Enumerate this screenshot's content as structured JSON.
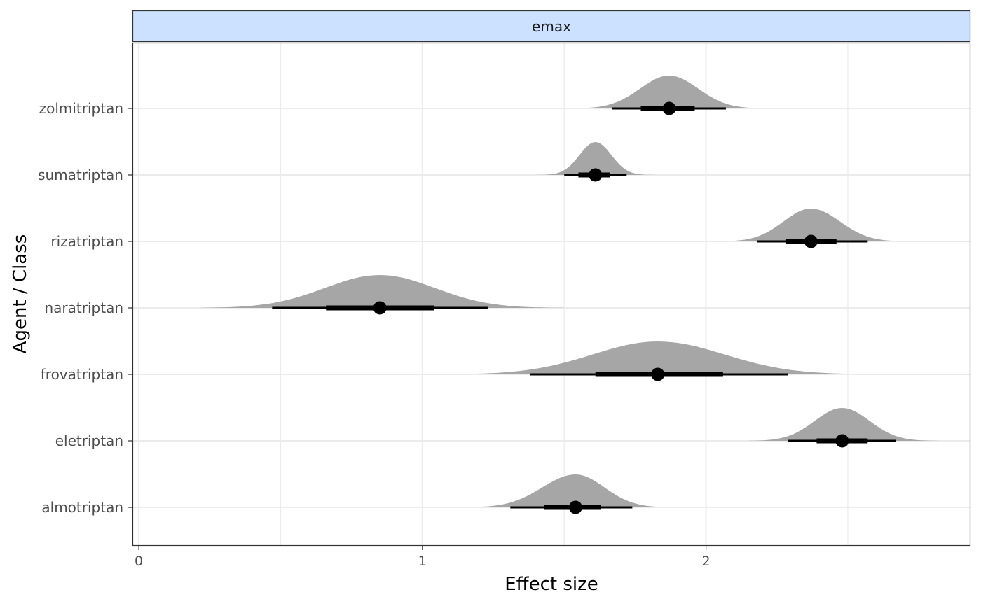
{
  "chart_data": {
    "type": "halfeye",
    "facet_label": "emax",
    "xlabel": "Effect size",
    "ylabel": "Agent / Class",
    "xlim": [
      -0.02,
      2.93
    ],
    "x_ticks": [
      0,
      1,
      2
    ],
    "categories": [
      "zolmitriptan",
      "sumatriptan",
      "rizatriptan",
      "naratriptan",
      "frovatriptan",
      "eletriptan",
      "almotriptan"
    ],
    "series": [
      {
        "category": "zolmitriptan",
        "median": 1.87,
        "interval_66": [
          1.77,
          1.96
        ],
        "interval_95": [
          1.67,
          2.07
        ],
        "density_range": [
          1.5,
          2.22
        ]
      },
      {
        "category": "sumatriptan",
        "median": 1.61,
        "interval_66": [
          1.55,
          1.66
        ],
        "interval_95": [
          1.5,
          1.72
        ],
        "density_range": [
          1.4,
          1.83
        ]
      },
      {
        "category": "rizatriptan",
        "median": 2.37,
        "interval_66": [
          2.28,
          2.46
        ],
        "interval_95": [
          2.18,
          2.57
        ],
        "density_range": [
          2.03,
          2.74
        ]
      },
      {
        "category": "naratriptan",
        "median": 0.85,
        "interval_66": [
          0.66,
          1.04
        ],
        "interval_95": [
          0.47,
          1.23
        ],
        "density_range": [
          0.22,
          1.5
        ]
      },
      {
        "category": "frovatriptan",
        "median": 1.83,
        "interval_66": [
          1.61,
          2.06
        ],
        "interval_95": [
          1.38,
          2.29
        ],
        "density_range": [
          1.1,
          2.6
        ]
      },
      {
        "category": "eletriptan",
        "median": 2.48,
        "interval_66": [
          2.39,
          2.57
        ],
        "interval_95": [
          2.29,
          2.67
        ],
        "density_range": [
          2.15,
          2.82
        ]
      },
      {
        "category": "almotriptan",
        "median": 1.54,
        "interval_66": [
          1.43,
          1.63
        ],
        "interval_95": [
          1.31,
          1.74
        ],
        "density_range": [
          1.15,
          1.95
        ]
      }
    ],
    "grid": true,
    "colors": {
      "density": "#a6a6a6",
      "interval": "#000000",
      "strip": "#cce0ff",
      "grid": "#ebebeb",
      "text": "#4d4d4d"
    }
  }
}
